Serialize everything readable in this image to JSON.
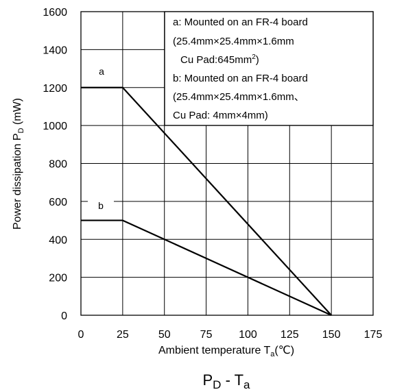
{
  "chart_data": {
    "type": "line",
    "caption": {
      "main_1": "P",
      "sub_1": "D",
      "mid": " - T",
      "sub_2": "a"
    },
    "xlabel": {
      "main": "Ambient temperature  T",
      "sub": "a",
      "unit": "(℃)"
    },
    "ylabel": {
      "main": "Power dissipation  P",
      "sub": "D",
      "unit": "  (mW)"
    },
    "xlim": [
      0,
      175
    ],
    "ylim": [
      0,
      1600
    ],
    "x_ticks": [
      "0",
      "25",
      "50",
      "75",
      "100",
      "125",
      "150",
      "175"
    ],
    "y_ticks": [
      "0",
      "200",
      "400",
      "600",
      "800",
      "1000",
      "1200",
      "1400",
      "1600"
    ],
    "grid": true,
    "series": [
      {
        "name": "a",
        "x": [
          0,
          25,
          150
        ],
        "y": [
          1200,
          1200,
          0
        ]
      },
      {
        "name": "b",
        "x": [
          0,
          25,
          150
        ],
        "y": [
          500,
          500,
          0
        ]
      }
    ],
    "annotation_box": {
      "line_1": "a: Mounted on an FR-4 board",
      "line_2": "(25.4mm×25.4mm×1.6mm",
      "line_3": "Cu Pad:645mm",
      "line_3_sup": "2",
      "line_3_end": ")",
      "line_4": "b: Mounted on an FR-4 board",
      "line_5": "(25.4mm×25.4mm×1.6mm、",
      "line_6": "Cu Pad: 4mm×4mm)"
    }
  }
}
